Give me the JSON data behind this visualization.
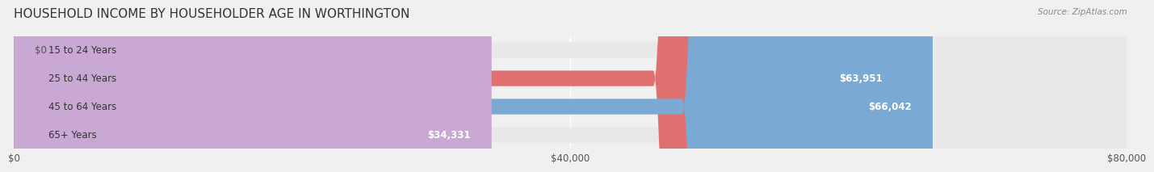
{
  "title": "HOUSEHOLD INCOME BY HOUSEHOLDER AGE IN WORTHINGTON",
  "source": "Source: ZipAtlas.com",
  "categories": [
    "15 to 24 Years",
    "25 to 44 Years",
    "45 to 64 Years",
    "65+ Years"
  ],
  "values": [
    0,
    63951,
    66042,
    34331
  ],
  "bar_colors": [
    "#f5c897",
    "#e07070",
    "#7aaad4",
    "#c9a8d4"
  ],
  "background_color": "#f0f0f0",
  "bar_bg_color": "#e8e8e8",
  "xlim": [
    0,
    80000
  ],
  "xticks": [
    0,
    40000,
    80000
  ],
  "xtick_labels": [
    "$0",
    "$40,000",
    "$80,000"
  ],
  "label_fontsize": 8.5,
  "title_fontsize": 11,
  "value_label_color": "#555555",
  "bar_height": 0.55
}
